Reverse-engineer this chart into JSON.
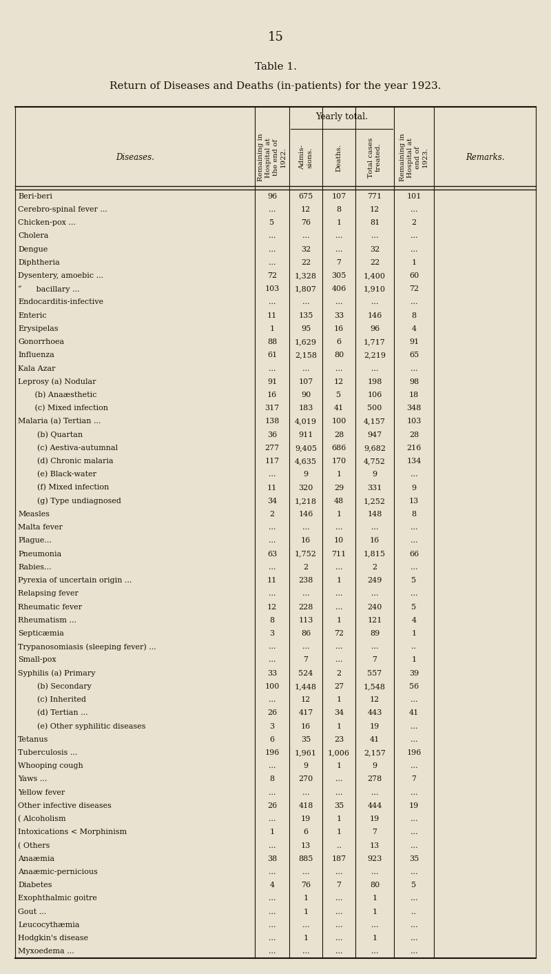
{
  "page_number": "15",
  "table_title": "Table 1.",
  "table_subtitle": "Return of Diseases and Deaths (in-patients) for the year 1923.",
  "bg_color": "#e8e2d0",
  "text_color": "#1a1008",
  "font_family": "serif",
  "rows": [
    [
      "Beri-beri",
      "96",
      "675",
      "107",
      "771",
      "101"
    ],
    [
      "Cerebro-spinal fever ...",
      "...",
      "12",
      "8",
      "12",
      "..."
    ],
    [
      "Chicken-pox ...",
      "5",
      "76",
      "1",
      "81",
      "2"
    ],
    [
      "Cholera",
      "...",
      "...",
      "...",
      "...",
      "..."
    ],
    [
      "Dengue",
      "...",
      "32",
      "...",
      "32",
      "..."
    ],
    [
      "Diphtheria",
      "...",
      "22",
      "7",
      "22",
      "1"
    ],
    [
      "Dysentery, amoebic ...",
      "72",
      "1,328",
      "305",
      "1,400",
      "60"
    ],
    [
      "“      bacillary ...",
      "103",
      "1,807",
      "406",
      "1,910",
      "72"
    ],
    [
      "Endocarditis-infective",
      "...",
      "...",
      "...",
      "...",
      "..."
    ],
    [
      "Enteric",
      "11",
      "135",
      "33",
      "146",
      "8"
    ],
    [
      "Erysipelas",
      "1",
      "95",
      "16",
      "96",
      "4"
    ],
    [
      "Gonorrhoea",
      "88",
      "1,629",
      "6",
      "1,717",
      "91"
    ],
    [
      "Influenza",
      "61",
      "2,158",
      "80",
      "2,219",
      "65"
    ],
    [
      "Kala Azar",
      "...",
      "...",
      "...",
      "...",
      "..."
    ],
    [
      "Leprosy (a) Nodular",
      "91",
      "107",
      "12",
      "198",
      "98"
    ],
    [
      "       (b) Anaæsthetic",
      "16",
      "90",
      "5",
      "106",
      "18"
    ],
    [
      "       (c) Mixed infection",
      "317",
      "183",
      "41",
      "500",
      "348"
    ],
    [
      "Malaria (a) Tertian ...",
      "138",
      "4,019",
      "100",
      "4,157",
      "103"
    ],
    [
      "        (b) Quartan",
      "36",
      "911",
      "28",
      "947",
      "28"
    ],
    [
      "        (c) Aestiva-autumnal",
      "277",
      "9,405",
      "686",
      "9,682",
      "216"
    ],
    [
      "        (d) Chronic malaria",
      "117",
      "4,635",
      "170",
      "4,752",
      "134"
    ],
    [
      "        (e) Black-water",
      "...",
      "9",
      "1",
      "9",
      "..."
    ],
    [
      "        (f) Mixed infection",
      "11",
      "320",
      "29",
      "331",
      "9"
    ],
    [
      "        (g) Type undiagnosed",
      "34",
      "1,218",
      "48",
      "1,252",
      "13"
    ],
    [
      "Measles",
      "2",
      "146",
      "1",
      "148",
      "8"
    ],
    [
      "Malta fever",
      "...",
      "...",
      "...",
      "...",
      "..."
    ],
    [
      "Plague...",
      "...",
      "16",
      "10",
      "16",
      "..."
    ],
    [
      "Pneumonia",
      "63",
      "1,752",
      "711",
      "1,815",
      "66"
    ],
    [
      "Rabies...",
      "...",
      "2",
      "...",
      "2",
      "..."
    ],
    [
      "Pyrexia of uncertain origin ...",
      "11",
      "238",
      "1",
      "249",
      "5"
    ],
    [
      "Relapsing fever",
      "...",
      "...",
      "...",
      "...",
      "..."
    ],
    [
      "Rheumatic fever",
      "12",
      "228",
      "...",
      "240",
      "5"
    ],
    [
      "Rheumatism ...",
      "8",
      "113",
      "1",
      "121",
      "4"
    ],
    [
      "Septicæmia",
      "3",
      "86",
      "72",
      "89",
      "1"
    ],
    [
      "Trypanosomiasis (sleeping fever) ...",
      "...",
      "...",
      "...",
      "...",
      ".."
    ],
    [
      "Small-pox",
      "...",
      "7",
      "...",
      "7",
      "1"
    ],
    [
      "Syphilis (a) Primary",
      "33",
      "524",
      "2",
      "557",
      "39"
    ],
    [
      "        (b) Secondary",
      "100",
      "1,448",
      "27",
      "1,548",
      "56"
    ],
    [
      "        (c) Inherited",
      "...",
      "12",
      "1",
      "12",
      "..."
    ],
    [
      "        (d) Tertian ...",
      "26",
      "417",
      "34",
      "443",
      "41"
    ],
    [
      "        (e) Other syphilitic diseases",
      "3",
      "16",
      "1",
      "19",
      "..."
    ],
    [
      "Tetanus",
      "6",
      "35",
      "23",
      "41",
      "..."
    ],
    [
      "Tuberculosis ...",
      "196",
      "1,961",
      "1,006",
      "2,157",
      "196"
    ],
    [
      "Whooping cough",
      "...",
      "9",
      "1",
      "9",
      "..."
    ],
    [
      "Yaws ...",
      "8",
      "270",
      "...",
      "278",
      "7"
    ],
    [
      "Yellow fever",
      "...",
      "...",
      "...",
      "...",
      "..."
    ],
    [
      "Other infective diseases",
      "26",
      "418",
      "35",
      "444",
      "19"
    ],
    [
      "( Alcoholism",
      "...",
      "19",
      "1",
      "19",
      "..."
    ],
    [
      "Intoxications < Morphinism",
      "1",
      "6",
      "1",
      "7",
      "..."
    ],
    [
      "( Others",
      "...",
      "13",
      "..",
      "13",
      "..."
    ],
    [
      "Anaæmia",
      "38",
      "885",
      "187",
      "923",
      "35"
    ],
    [
      "Anaæmic-pernicious",
      "...",
      "...",
      "...",
      "...",
      "..."
    ],
    [
      "Diabetes",
      "4",
      "76",
      "7",
      "80",
      "5"
    ],
    [
      "Exophthalmic goitre",
      "...",
      "1",
      "...",
      "1",
      "..."
    ],
    [
      "Gout ...",
      "...",
      "1",
      "...",
      "1",
      ".."
    ],
    [
      "Leucocythæmia",
      "...",
      "...",
      "...",
      "...",
      "..."
    ],
    [
      "Hodgkin's disease",
      "...",
      "1",
      "...",
      "1",
      "..."
    ],
    [
      "Myxoedema ...",
      "...",
      "...",
      "...",
      "...",
      "..."
    ]
  ]
}
